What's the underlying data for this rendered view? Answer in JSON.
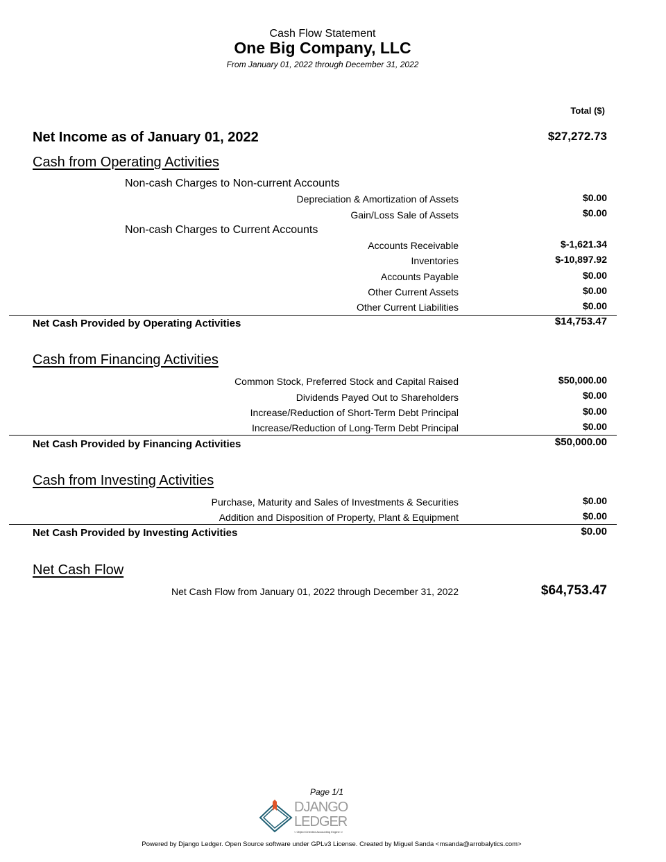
{
  "header": {
    "report_title": "Cash Flow Statement",
    "company": "One Big Company, LLC",
    "period": "From January 01, 2022 through December 31, 2022",
    "column_header": "Total ($)"
  },
  "net_income": {
    "label": "Net Income as of January 01, 2022",
    "value": "$27,272.73"
  },
  "operating": {
    "title": "Cash from Operating Activities",
    "noncurrent_title": "Non-cash Charges to Non-current Accounts",
    "noncurrent_items": [
      {
        "label": "Depreciation & Amortization of Assets",
        "value": "$0.00"
      },
      {
        "label": "Gain/Loss Sale of Assets",
        "value": "$0.00"
      }
    ],
    "current_title": "Non-cash Charges to Current Accounts",
    "current_items": [
      {
        "label": "Accounts Receivable",
        "value": "$-1,621.34"
      },
      {
        "label": "Inventories",
        "value": "$-10,897.92"
      },
      {
        "label": "Accounts Payable",
        "value": "$0.00"
      },
      {
        "label": "Other Current Assets",
        "value": "$0.00"
      },
      {
        "label": "Other Current Liabilities",
        "value": "$0.00"
      }
    ],
    "net_label": "Net Cash Provided by Operating Activities",
    "net_value": "$14,753.47"
  },
  "financing": {
    "title": "Cash from Financing Activities",
    "items": [
      {
        "label": "Common Stock, Preferred Stock and Capital Raised",
        "value": "$50,000.00"
      },
      {
        "label": "Dividends Payed Out to Shareholders",
        "value": "$0.00"
      },
      {
        "label": "Increase/Reduction of Short-Term Debt Principal",
        "value": "$0.00"
      },
      {
        "label": "Increase/Reduction of Long-Term Debt Principal",
        "value": "$0.00"
      }
    ],
    "net_label": "Net Cash Provided by Financing Activities",
    "net_value": "$50,000.00"
  },
  "investing": {
    "title": "Cash from Investing Activities",
    "items": [
      {
        "label": "Purchase, Maturity and Sales of Investments & Securities",
        "value": "$0.00"
      },
      {
        "label": "Addition and Disposition of Property, Plant & Equipment",
        "value": "$0.00"
      }
    ],
    "net_label": "Net Cash Provided by Investing Activities",
    "net_value": "$0.00"
  },
  "net_cash_flow": {
    "title": "Net Cash Flow",
    "label": "Net Cash Flow from January 01, 2022 through December 31, 2022",
    "value": "$64,753.47"
  },
  "footer": {
    "page": "Page 1/1",
    "logo_text_1": "DJANGO",
    "logo_text_2": "LEDGER",
    "logo_tagline": "< Object Oriented Accounting Engine />",
    "powered_by": "Powered by Django Ledger. Open Source software under GPLv3 License. Created by Miguel Sanda <msanda@arrobalytics.com>",
    "logo_colors": {
      "teal": "#1f5f73",
      "orange": "#e0552a",
      "gray": "#999999"
    }
  }
}
